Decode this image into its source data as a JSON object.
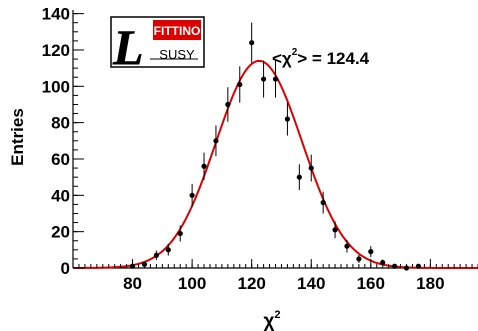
{
  "chart_data": {
    "type": "scatter",
    "xlabel_base": "χ",
    "xlabel_sup": "2",
    "ylabel": "Entries",
    "xlim": [
      60,
      196
    ],
    "ylim": [
      0,
      142
    ],
    "xticks": [
      80,
      100,
      120,
      140,
      160,
      180
    ],
    "yticks": [
      0,
      20,
      40,
      60,
      80,
      100,
      120,
      140
    ],
    "x_minor_step": 2,
    "y_minor_step": 5,
    "grid": false,
    "annotation": {
      "prefix": "<χ",
      "sup": "2",
      "suffix": "> = 124.4"
    },
    "logo": {
      "letter": "L",
      "top_text": "FITTINO",
      "bottom_text": "SUSY"
    },
    "series": [
      {
        "type": "points_with_errors",
        "color": "#000000",
        "x": [
          80,
          84,
          88,
          92,
          96,
          100,
          104,
          108,
          112,
          116,
          120,
          124,
          128,
          132,
          136,
          140,
          144,
          148,
          152,
          156,
          160,
          164,
          168,
          172,
          176
        ],
        "y": [
          1,
          2,
          7,
          10,
          19,
          40,
          56,
          70,
          90,
          101,
          124,
          104,
          104,
          82,
          50,
          55,
          36,
          21,
          12,
          5,
          9,
          3,
          1,
          0,
          1
        ],
        "yerr": [
          1,
          1.4,
          2.6,
          3.2,
          4.4,
          6.3,
          7.5,
          8.4,
          9.5,
          10.0,
          11.1,
          10.2,
          10.2,
          9.1,
          7.1,
          7.4,
          6.0,
          4.6,
          3.5,
          2.2,
          3.0,
          1.7,
          1,
          0,
          1
        ]
      },
      {
        "type": "gaussian_fit",
        "color": "#dd0000",
        "amplitude": 114,
        "mean": 122.5,
        "sigma": 14.5
      }
    ]
  }
}
